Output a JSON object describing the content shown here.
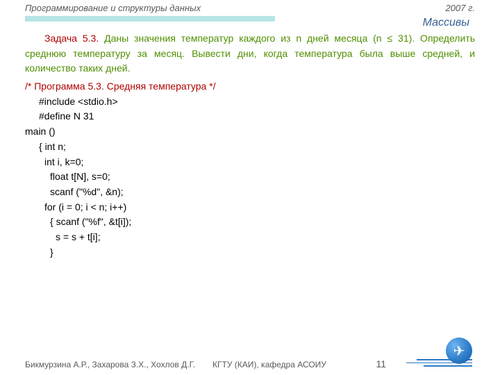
{
  "header": {
    "left": "Программирование  и структуры данных",
    "right": "2007 г."
  },
  "section_title": "Массивы",
  "task": {
    "label": "Задача 5.3.",
    "text": " Даны значения температур каждого из n дней месяца (n ≤ 31).  Определить среднюю температуру за месяц. Вывести дни, когда температура была выше средней, и количество таких дней."
  },
  "program": {
    "comment": "/* Программа 5.3.      Средняя температура                                             */",
    "lines": [
      "#include <stdio.h>",
      "#define  N   31",
      "main ()",
      "{  int n;",
      "int  i, k=0;",
      "float t[N], s=0;",
      "scanf (\"%d\", &n);",
      "for (i = 0; i < n; i++)",
      "{  scanf (\"%f\", &t[i]);",
      "s = s + t[i];",
      "}"
    ]
  },
  "footer": {
    "authors": "Бикмурзина А.Р., Захарова З.Х., Хохлов Д.Г.",
    "org": "КГТУ (КАИ), кафедра АСОИУ",
    "page": "11"
  },
  "colors": {
    "header_text": "#595959",
    "section_text": "#376092",
    "section_bar": "#b7e4e4",
    "task_label": "#b10000",
    "task_text": "#4f8f00",
    "code_text": "#000000",
    "logo_gradient_inner": "#6db4f0",
    "logo_gradient_outer": "#155a9e"
  }
}
